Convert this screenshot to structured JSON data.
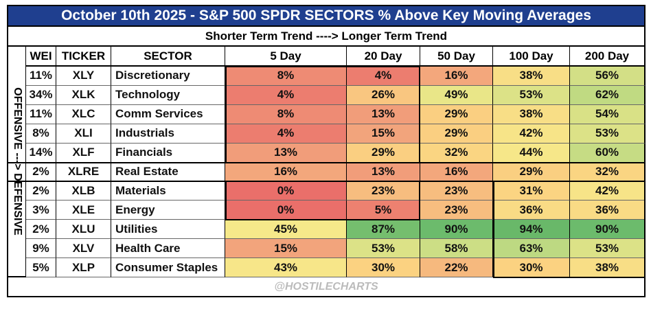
{
  "header": {
    "title": "October 10th 2025 - S&P 500 SPDR SECTORS  % Above Key Moving Averages",
    "subtitle": "Shorter Term Trend  ---->  Longer Term  Trend"
  },
  "side_label": "OFFENSIVE ---> DEFENSIVE",
  "table": {
    "columns": [
      "WEI",
      "TICKER",
      "SECTOR",
      "5 Day",
      "20 Day",
      "50 Day",
      "100 Day",
      "200 Day"
    ],
    "rows": [
      [
        "11%",
        "XLY",
        "Discretionary",
        "8%",
        "4%",
        "16%",
        "38%",
        "56%"
      ],
      [
        "34%",
        "XLK",
        "Technology",
        "4%",
        "26%",
        "49%",
        "53%",
        "62%"
      ],
      [
        "11%",
        "XLC",
        "Comm Services",
        "8%",
        "13%",
        "29%",
        "38%",
        "54%"
      ],
      [
        "8%",
        "XLI",
        "Industrials",
        "4%",
        "15%",
        "29%",
        "42%",
        "53%"
      ],
      [
        "14%",
        "XLF",
        "Financials",
        "13%",
        "29%",
        "32%",
        "44%",
        "60%"
      ],
      [
        "2%",
        "XLRE",
        "Real Estate",
        "16%",
        "13%",
        "16%",
        "29%",
        "32%"
      ],
      [
        "2%",
        "XLB",
        "Materials",
        "0%",
        "23%",
        "23%",
        "31%",
        "42%"
      ],
      [
        "3%",
        "XLE",
        "Energy",
        "0%",
        "5%",
        "23%",
        "36%",
        "36%"
      ],
      [
        "2%",
        "XLU",
        "Utilities",
        "45%",
        "87%",
        "90%",
        "94%",
        "90%"
      ],
      [
        "9%",
        "XLV",
        "Health Care",
        "15%",
        "53%",
        "58%",
        "63%",
        "53%"
      ],
      [
        "5%",
        "XLP",
        "Consumer Staples",
        "43%",
        "30%",
        "22%",
        "30%",
        "38%"
      ]
    ]
  },
  "footer": "@HOSTILECHARTS"
}
